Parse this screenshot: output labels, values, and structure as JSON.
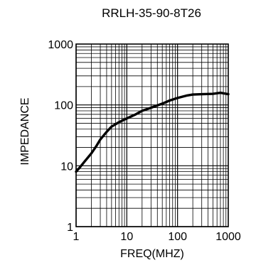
{
  "chart_data": {
    "type": "line",
    "title": "RRLH-35-90-8T26",
    "xlabel": "FREQ(MHZ)",
    "ylabel": "IMPEDANCE",
    "x_scale": "log",
    "y_scale": "log",
    "xlim": [
      1,
      1000
    ],
    "ylim": [
      1,
      1000
    ],
    "x_ticks": [
      1,
      10,
      100,
      1000
    ],
    "x_tick_labels": [
      "1",
      "10",
      "100",
      "1000"
    ],
    "y_ticks": [
      1,
      10,
      100,
      1000
    ],
    "y_tick_labels": [
      "1",
      "10",
      "100",
      "1000"
    ],
    "grid": true,
    "line_color": "#000000",
    "series": [
      {
        "x": [
          1,
          1.2,
          1.5,
          2,
          2.5,
          3,
          4,
          5,
          7,
          10,
          15,
          20,
          30,
          50,
          70,
          100,
          150,
          200,
          300,
          500,
          700,
          1000
        ],
        "y": [
          8,
          9.5,
          12,
          16,
          21,
          27,
          36,
          44,
          52,
          60,
          70,
          80,
          90,
          105,
          118,
          130,
          142,
          148,
          150,
          152,
          158,
          150
        ]
      }
    ]
  }
}
